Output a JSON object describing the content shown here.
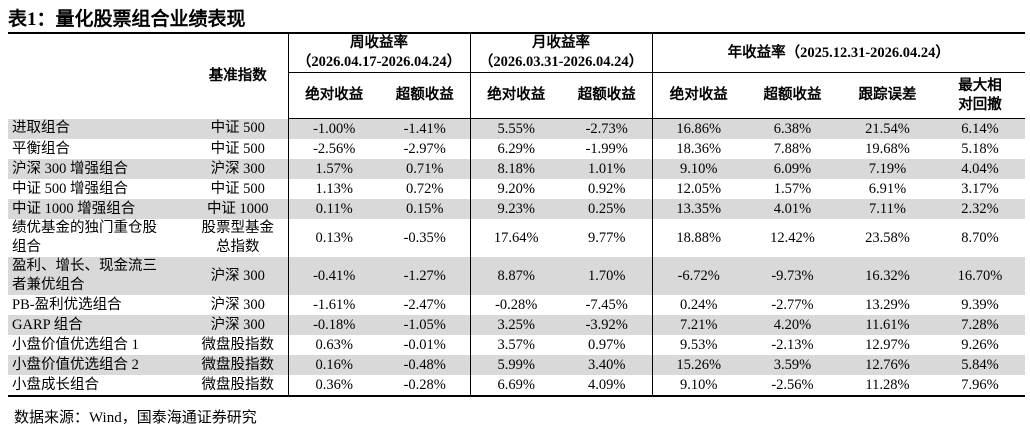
{
  "title": "表1：量化股票组合业绩表现",
  "table": {
    "base_header": "基准指数",
    "groups": [
      {
        "title": "周收益率",
        "period": "（2026.04.17-2026.04.24）",
        "columns": [
          "绝对收益",
          "超额收益"
        ]
      },
      {
        "title": "月收益率",
        "period": "（2026.03.31-2026.04.24）",
        "columns": [
          "绝对收益",
          "超额收益"
        ]
      },
      {
        "title": "年收益率（2025.12.31-2026.04.24）",
        "columns": [
          "绝对收益",
          "超额收益",
          "跟踪误差",
          "最大相对回撤"
        ]
      }
    ],
    "rows": [
      [
        "进取组合",
        "中证 500",
        "-1.00%",
        "-1.41%",
        "5.55%",
        "-2.73%",
        "16.86%",
        "6.38%",
        "21.54%",
        "6.14%"
      ],
      [
        "平衡组合",
        "中证 500",
        "-2.56%",
        "-2.97%",
        "6.29%",
        "-1.99%",
        "18.36%",
        "7.88%",
        "19.68%",
        "5.18%"
      ],
      [
        "沪深 300 增强组合",
        "沪深 300",
        "1.57%",
        "0.71%",
        "8.18%",
        "1.01%",
        "9.10%",
        "6.09%",
        "7.19%",
        "4.04%"
      ],
      [
        "中证 500 增强组合",
        "中证 500",
        "1.13%",
        "0.72%",
        "9.20%",
        "0.92%",
        "12.05%",
        "1.57%",
        "6.91%",
        "3.17%"
      ],
      [
        "中证 1000 增强组合",
        "中证 1000",
        "0.11%",
        "0.15%",
        "9.23%",
        "0.25%",
        "13.35%",
        "4.01%",
        "7.11%",
        "2.32%"
      ],
      [
        "绩优基金的独门重仓股组合",
        "股票型基金总指数",
        "0.13%",
        "-0.35%",
        "17.64%",
        "9.77%",
        "18.88%",
        "12.42%",
        "23.58%",
        "8.70%"
      ],
      [
        "盈利、增长、现金流三者兼优组合",
        "沪深 300",
        "-0.41%",
        "-1.27%",
        "8.87%",
        "1.70%",
        "-6.72%",
        "-9.73%",
        "16.32%",
        "16.70%"
      ],
      [
        "PB-盈利优选组合",
        "沪深 300",
        "-1.61%",
        "-2.47%",
        "-0.28%",
        "-7.45%",
        "0.24%",
        "-2.77%",
        "13.29%",
        "9.39%"
      ],
      [
        "GARP 组合",
        "沪深 300",
        "-0.18%",
        "-1.05%",
        "3.25%",
        "-3.92%",
        "7.21%",
        "4.20%",
        "11.61%",
        "7.28%"
      ],
      [
        "小盘价值优选组合 1",
        "微盘股指数",
        "0.63%",
        "-0.01%",
        "3.57%",
        "0.97%",
        "9.53%",
        "-2.13%",
        "12.97%",
        "9.26%"
      ],
      [
        "小盘价值优选组合 2",
        "微盘股指数",
        "0.16%",
        "-0.48%",
        "5.99%",
        "3.40%",
        "15.26%",
        "3.59%",
        "12.76%",
        "5.84%"
      ],
      [
        "小盘成长组合",
        "微盘股指数",
        "0.36%",
        "-0.28%",
        "6.69%",
        "4.09%",
        "9.10%",
        "-2.56%",
        "11.28%",
        "7.96%"
      ]
    ]
  },
  "source": "数据来源：Wind，国泰海通证券研究"
}
